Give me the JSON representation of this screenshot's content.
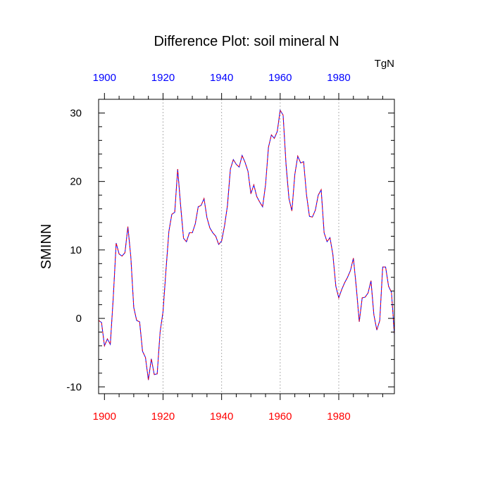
{
  "chart_data": {
    "type": "line",
    "title": "Difference Plot: soil mineral N",
    "ylabel": "SMINN",
    "units": "TgN",
    "xlim": [
      1898,
      1999
    ],
    "ylim": [
      -11,
      32
    ],
    "grid": "vertical-dotted",
    "bottom_axis_color": "#ff0000",
    "top_axis_color": "#0000ff",
    "xticks": [
      1900,
      1920,
      1940,
      1960,
      1980
    ],
    "xtick_labels": [
      "1900",
      "1920",
      "1940",
      "1960",
      "1980"
    ],
    "yticks": [
      -10,
      0,
      10,
      20,
      30
    ],
    "ytick_labels": [
      "-10",
      "0",
      "10",
      "20",
      "30"
    ],
    "series": [
      {
        "color": "#0000ff",
        "style": "solid",
        "x": [
          1898,
          1899,
          1900,
          1901,
          1902,
          1903,
          1904,
          1905,
          1906,
          1907,
          1908,
          1909,
          1910,
          1911,
          1912,
          1913,
          1914,
          1915,
          1916,
          1917,
          1918,
          1919,
          1920,
          1921,
          1922,
          1923,
          1924,
          1925,
          1926,
          1927,
          1928,
          1929,
          1930,
          1931,
          1932,
          1933,
          1934,
          1935,
          1936,
          1937,
          1938,
          1939,
          1940,
          1941,
          1942,
          1943,
          1944,
          1945,
          1946,
          1947,
          1948,
          1949,
          1950,
          1951,
          1952,
          1953,
          1954,
          1955,
          1956,
          1957,
          1958,
          1959,
          1960,
          1961,
          1962,
          1963,
          1964,
          1965,
          1966,
          1967,
          1968,
          1969,
          1970,
          1971,
          1972,
          1973,
          1974,
          1975,
          1976,
          1977,
          1978,
          1979,
          1980,
          1981,
          1982,
          1983,
          1984,
          1985,
          1986,
          1987,
          1988,
          1989,
          1990,
          1991,
          1992,
          1993,
          1994,
          1995,
          1996,
          1997,
          1998,
          1999
        ],
        "y": [
          -0.3,
          -0.6,
          -4.0,
          -3.0,
          -3.8,
          3.0,
          11.0,
          9.4,
          9.1,
          9.6,
          13.4,
          9.0,
          1.6,
          -0.3,
          -0.5,
          -4.8,
          -5.7,
          -9.0,
          -5.9,
          -8.2,
          -8.1,
          -2.0,
          1.0,
          7.0,
          12.7,
          15.2,
          15.5,
          21.8,
          16.5,
          11.7,
          11.2,
          12.5,
          12.5,
          13.8,
          16.3,
          16.5,
          17.5,
          14.7,
          13.2,
          12.5,
          12.0,
          10.8,
          11.3,
          13.5,
          16.5,
          21.8,
          23.2,
          22.5,
          22.1,
          23.8,
          22.8,
          21.5,
          18.2,
          19.5,
          17.8,
          17.0,
          16.3,
          19.5,
          25.0,
          26.8,
          26.3,
          27.3,
          30.4,
          29.7,
          22.5,
          17.5,
          15.7,
          21.0,
          23.7,
          22.7,
          22.9,
          18.0,
          14.9,
          14.8,
          15.8,
          18.0,
          18.8,
          12.5,
          11.2,
          11.8,
          9.3,
          4.7,
          3.0,
          4.2,
          5.2,
          6.0,
          7.0,
          8.8,
          4.5,
          -0.5,
          3.0,
          3.1,
          3.7,
          5.5,
          0.5,
          -1.7,
          -0.3,
          7.5,
          7.5,
          4.7,
          3.8,
          -2.4
        ]
      },
      {
        "color": "#ff0000",
        "style": "dashed",
        "x": [
          1898,
          1899,
          1900,
          1901,
          1902,
          1903,
          1904,
          1905,
          1906,
          1907,
          1908,
          1909,
          1910,
          1911,
          1912,
          1913,
          1914,
          1915,
          1916,
          1917,
          1918,
          1919,
          1920,
          1921,
          1922,
          1923,
          1924,
          1925,
          1926,
          1927,
          1928,
          1929,
          1930,
          1931,
          1932,
          1933,
          1934,
          1935,
          1936,
          1937,
          1938,
          1939,
          1940,
          1941,
          1942,
          1943,
          1944,
          1945,
          1946,
          1947,
          1948,
          1949,
          1950,
          1951,
          1952,
          1953,
          1954,
          1955,
          1956,
          1957,
          1958,
          1959,
          1960,
          1961,
          1962,
          1963,
          1964,
          1965,
          1966,
          1967,
          1968,
          1969,
          1970,
          1971,
          1972,
          1973,
          1974,
          1975,
          1976,
          1977,
          1978,
          1979,
          1980,
          1981,
          1982,
          1983,
          1984,
          1985,
          1986,
          1987,
          1988,
          1989,
          1990,
          1991,
          1992,
          1993,
          1994,
          1995,
          1996,
          1997,
          1998,
          1999
        ],
        "y": [
          -0.3,
          -0.6,
          -4.0,
          -3.0,
          -3.8,
          3.0,
          11.0,
          9.4,
          9.1,
          9.6,
          13.4,
          9.0,
          1.6,
          -0.3,
          -0.5,
          -4.8,
          -5.7,
          -9.0,
          -5.9,
          -8.2,
          -8.1,
          -2.0,
          1.0,
          7.0,
          12.7,
          15.2,
          15.5,
          21.8,
          16.5,
          11.7,
          11.2,
          12.5,
          12.5,
          13.8,
          16.3,
          16.5,
          17.5,
          14.7,
          13.2,
          12.5,
          12.0,
          10.8,
          11.3,
          13.5,
          16.5,
          21.8,
          23.2,
          22.5,
          22.1,
          23.8,
          22.8,
          21.5,
          18.2,
          19.5,
          17.8,
          17.0,
          16.3,
          19.5,
          25.0,
          26.8,
          26.3,
          27.3,
          30.4,
          29.7,
          22.5,
          17.5,
          15.7,
          21.0,
          23.7,
          22.7,
          22.9,
          18.0,
          14.9,
          14.8,
          15.8,
          18.0,
          18.8,
          12.5,
          11.2,
          11.8,
          9.3,
          4.7,
          3.0,
          4.2,
          5.2,
          6.0,
          7.0,
          8.8,
          4.5,
          -0.5,
          3.0,
          3.1,
          3.7,
          5.5,
          0.5,
          -1.7,
          -0.3,
          7.5,
          7.5,
          4.7,
          3.8,
          -2.4
        ]
      }
    ]
  }
}
